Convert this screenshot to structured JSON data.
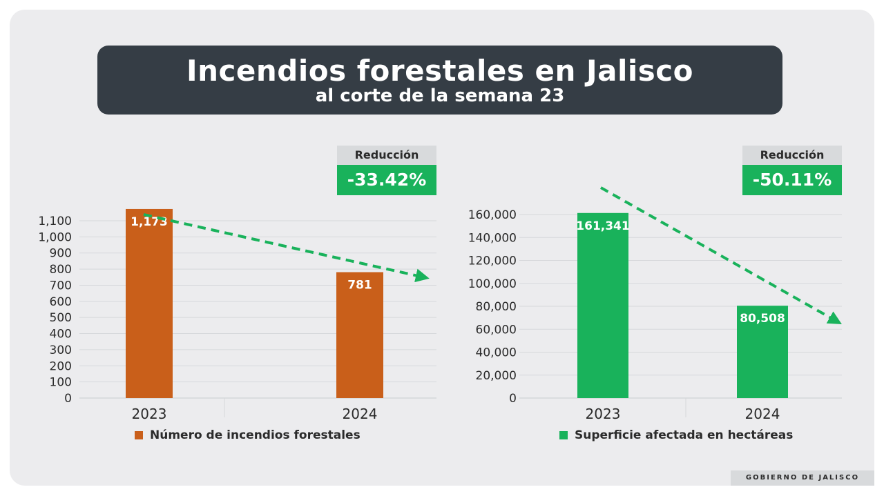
{
  "header": {
    "title": "Incendios forestales en Jalisco",
    "subtitle": "al corte de la semana 23"
  },
  "colors": {
    "orange": "#c95f1a",
    "green": "#19b25b",
    "banner": "#353d45"
  },
  "footer": {
    "text": "GOBIERNO DE JALISCO"
  },
  "chart_data": [
    {
      "type": "bar",
      "categories": [
        "2023",
        "2024"
      ],
      "values": [
        1173,
        781
      ],
      "data_labels": [
        "1,173",
        "781"
      ],
      "legend": "Número de incendios forestales",
      "color": "#c95f1a",
      "ylim": [
        0,
        1100
      ],
      "yticks": [
        "0",
        "100",
        "200",
        "300",
        "400",
        "500",
        "600",
        "700",
        "800",
        "900",
        "1,000",
        "1,100"
      ],
      "reduction_label": "Reducción",
      "reduction_value": "-33.42%",
      "grid": true
    },
    {
      "type": "bar",
      "categories": [
        "2023",
        "2024"
      ],
      "values": [
        161341,
        80508
      ],
      "data_labels": [
        "161,341",
        "80,508"
      ],
      "legend": "Superficie afectada en hectáreas",
      "color": "#19b25b",
      "ylim": [
        0,
        160000
      ],
      "yticks": [
        "0",
        "20,000",
        "40,000",
        "60,000",
        "80,000",
        "100,000",
        "120,000",
        "140,000",
        "160,000"
      ],
      "reduction_label": "Reducción",
      "reduction_value": "-50.11%",
      "grid": true
    }
  ]
}
